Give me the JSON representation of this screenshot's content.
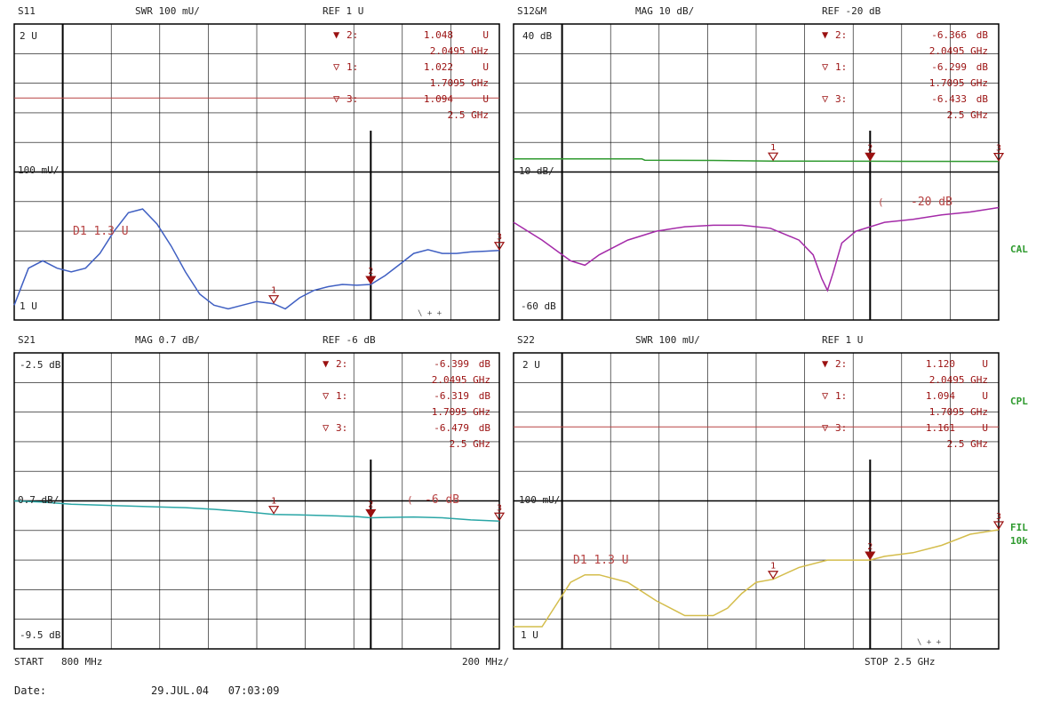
{
  "colors": {
    "background": "#ffffff",
    "grid": "#000000",
    "text": "#222222",
    "marker": "#9a1010",
    "limit_line": "#b84444",
    "side_label": "#2e9a2e",
    "trace_s11": "#3f5fc2",
    "trace_s12_ref": "#2f9a2f",
    "trace_s12": "#a42aa8",
    "trace_s21": "#2aa6a6",
    "trace_s22": "#d4bd4c"
  },
  "footer": {
    "start": "START   800 MHz",
    "span": "200 MHz/",
    "stop": "STOP 2.5 GHz",
    "date_label": "Date:",
    "date_value": "29.JUL.04   07:03:09"
  },
  "side_labels": [
    "CAL",
    "CPL",
    "FIL",
    "10k"
  ],
  "chart_data": [
    {
      "type": "line",
      "channel": "S11",
      "format": "SWR 100 mU/",
      "ref": "REF 1 U",
      "y_top_label": "2 U",
      "y_mid_label": "100 mU/",
      "y_bottom_label": "1 U",
      "limit_label": "D1 1.3 U",
      "limit_value": 1.3,
      "ylim": [
        1.0,
        1.4
      ],
      "x_range_ghz": [
        0.8,
        2.5
      ],
      "markers": [
        {
          "label": "2:",
          "value": "1.048",
          "unit": "U",
          "freq": "2.0495 GHz",
          "x": 2.0495,
          "y": 1.048,
          "active": true
        },
        {
          "label": "1:",
          "value": "1.022",
          "unit": "U",
          "freq": "1.7095 GHz",
          "x": 1.7095,
          "y": 1.022,
          "active": false
        },
        {
          "label": "3:",
          "value": "1.094",
          "unit": "U",
          "freq": "2.5 GHz",
          "x": 2.5,
          "y": 1.094,
          "active": false
        }
      ],
      "series": [
        {
          "x": [
            0.8,
            0.85,
            0.9,
            0.95,
            1.0,
            1.05,
            1.1,
            1.15,
            1.2,
            1.25,
            1.3,
            1.35,
            1.4,
            1.45,
            1.5,
            1.55,
            1.6,
            1.65,
            1.7095,
            1.75,
            1.8,
            1.85,
            1.9,
            1.95,
            2.0,
            2.0495,
            2.1,
            2.15,
            2.2,
            2.25,
            2.3,
            2.35,
            2.4,
            2.45,
            2.5
          ],
          "y": [
            1.02,
            1.07,
            1.08,
            1.07,
            1.065,
            1.07,
            1.09,
            1.12,
            1.145,
            1.15,
            1.13,
            1.1,
            1.065,
            1.035,
            1.02,
            1.015,
            1.02,
            1.025,
            1.022,
            1.015,
            1.03,
            1.04,
            1.045,
            1.048,
            1.047,
            1.048,
            1.06,
            1.075,
            1.09,
            1.095,
            1.09,
            1.09,
            1.092,
            1.093,
            1.094
          ]
        }
      ]
    },
    {
      "type": "line",
      "channel": "S12&M",
      "format": "MAG 10 dB/",
      "ref": "REF -20 dB",
      "y_top_label": "40 dB",
      "y_mid_label": "10 dB/",
      "y_bottom_label": "-60 dB",
      "ref_label": "-20 dB",
      "ylim": [
        -60,
        40
      ],
      "x_range_ghz": [
        0.8,
        2.5
      ],
      "markers": [
        {
          "label": "2:",
          "value": "-6.366",
          "unit": "dB",
          "freq": "2.0495 GHz",
          "x": 2.0495,
          "y": -6.366,
          "active": true
        },
        {
          "label": "1:",
          "value": "-6.299",
          "unit": "dB",
          "freq": "1.7095 GHz",
          "x": 1.7095,
          "y": -6.299,
          "active": false
        },
        {
          "label": "3:",
          "value": "-6.433",
          "unit": "dB",
          "freq": "2.5 GHz",
          "x": 2.5,
          "y": -6.433,
          "active": false
        }
      ],
      "series": [
        {
          "x": [
            0.8,
            1.0,
            1.25,
            1.26,
            1.5,
            1.7095,
            2.0495,
            2.5
          ],
          "y": [
            -5.6,
            -5.6,
            -5.6,
            -6.0,
            -6.1,
            -6.299,
            -6.366,
            -6.433
          ]
        },
        {
          "x": [
            0.8,
            0.9,
            1.0,
            1.05,
            1.1,
            1.2,
            1.3,
            1.4,
            1.5,
            1.6,
            1.7,
            1.8,
            1.85,
            1.88,
            1.9,
            1.92,
            1.95,
            2.0,
            2.1,
            2.2,
            2.3,
            2.4,
            2.5
          ],
          "y": [
            -27,
            -33,
            -40,
            -41.5,
            -38,
            -33,
            -30,
            -28.5,
            -28,
            -28,
            -29,
            -33,
            -38,
            -46,
            -50,
            -44,
            -34,
            -30,
            -27,
            -26,
            -24.5,
            -23.5,
            -22
          ]
        }
      ]
    },
    {
      "type": "line",
      "channel": "S21",
      "format": "MAG 0.7 dB/",
      "ref": "REF -6 dB",
      "y_top_label": "-2.5 dB",
      "y_mid_label": "0.7 dB/",
      "y_bottom_label": "-9.5 dB",
      "ref_label": "-6 dB",
      "ylim": [
        -9.5,
        -2.5
      ],
      "x_range_ghz": [
        0.8,
        2.5
      ],
      "markers": [
        {
          "label": "2:",
          "value": "-6.399",
          "unit": "dB",
          "freq": "2.0495 GHz",
          "x": 2.0495,
          "y": -6.399,
          "active": true
        },
        {
          "label": "1:",
          "value": "-6.319",
          "unit": "dB",
          "freq": "1.7095 GHz",
          "x": 1.7095,
          "y": -6.319,
          "active": false
        },
        {
          "label": "3:",
          "value": "-6.479",
          "unit": "dB",
          "freq": "2.5 GHz",
          "x": 2.5,
          "y": -6.479,
          "active": false
        }
      ],
      "series": [
        {
          "x": [
            0.8,
            0.9,
            1.0,
            1.1,
            1.2,
            1.3,
            1.4,
            1.5,
            1.6,
            1.7095,
            1.8,
            1.9,
            2.0,
            2.0495,
            2.1,
            2.2,
            2.3,
            2.4,
            2.5
          ],
          "y": [
            -6.0,
            -6.03,
            -6.08,
            -6.1,
            -6.12,
            -6.14,
            -6.16,
            -6.2,
            -6.25,
            -6.319,
            -6.33,
            -6.35,
            -6.37,
            -6.399,
            -6.39,
            -6.38,
            -6.4,
            -6.45,
            -6.479
          ]
        }
      ]
    },
    {
      "type": "line",
      "channel": "S22",
      "format": "SWR 100 mU/",
      "ref": "REF 1 U",
      "y_top_label": "2 U",
      "y_mid_label": "100 mU/",
      "y_bottom_label": "1 U",
      "limit_label": "D1 1.3 U",
      "limit_value": 1.3,
      "ylim": [
        1.0,
        1.4
      ],
      "x_range_ghz": [
        0.8,
        2.5
      ],
      "markers": [
        {
          "label": "2:",
          "value": "1.120",
          "unit": "U",
          "freq": "2.0495 GHz",
          "x": 2.0495,
          "y": 1.12,
          "active": true
        },
        {
          "label": "1:",
          "value": "1.094",
          "unit": "U",
          "freq": "1.7095 GHz",
          "x": 1.7095,
          "y": 1.094,
          "active": false
        },
        {
          "label": "3:",
          "value": "1.161",
          "unit": "U",
          "freq": "2.5 GHz",
          "x": 2.5,
          "y": 1.161,
          "active": false
        }
      ],
      "series": [
        {
          "x": [
            0.8,
            0.9,
            0.95,
            1.0,
            1.05,
            1.1,
            1.2,
            1.3,
            1.4,
            1.5,
            1.55,
            1.6,
            1.65,
            1.7095,
            1.8,
            1.9,
            2.0495,
            2.1,
            2.2,
            2.3,
            2.4,
            2.5
          ],
          "y": [
            1.03,
            1.03,
            1.06,
            1.09,
            1.1,
            1.1,
            1.09,
            1.065,
            1.045,
            1.045,
            1.055,
            1.075,
            1.09,
            1.094,
            1.11,
            1.12,
            1.12,
            1.125,
            1.13,
            1.14,
            1.155,
            1.161
          ]
        }
      ]
    }
  ]
}
